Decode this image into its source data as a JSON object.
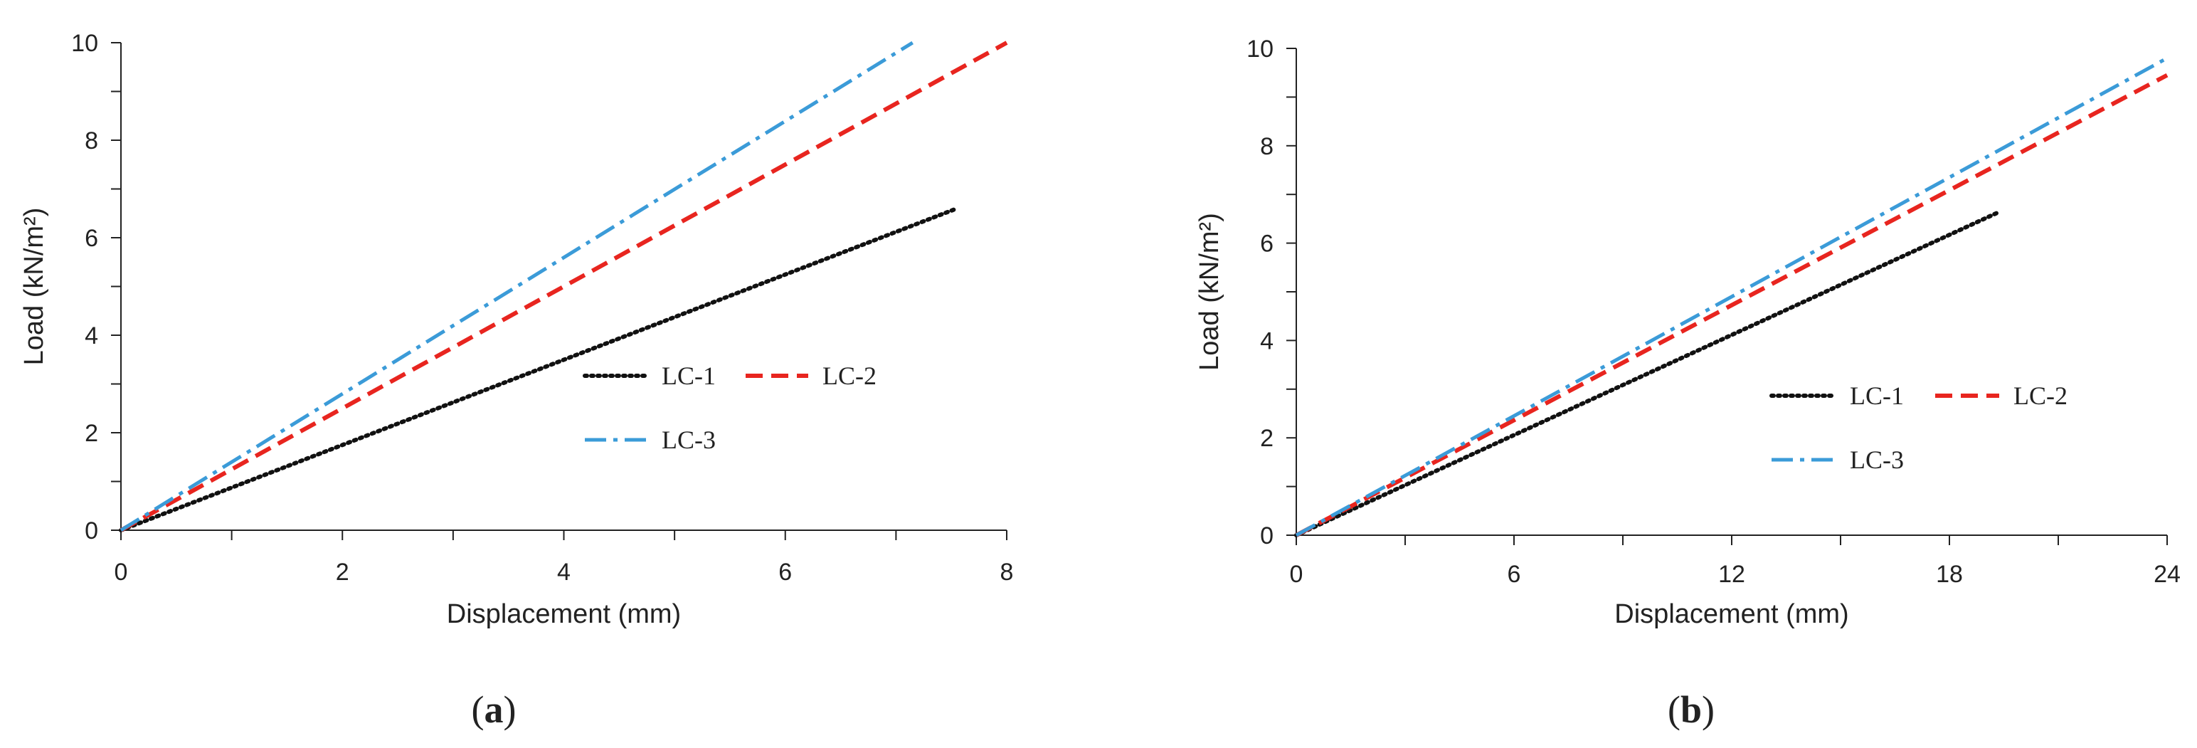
{
  "chart_data": [
    {
      "type": "line",
      "panel_label": "a",
      "caption_open": "(",
      "caption_close": ")",
      "title": "",
      "xlabel": "Displacement (mm)",
      "ylabel": "Load (kN/m²)",
      "xlim": [
        0,
        8
      ],
      "ylim": [
        0,
        10
      ],
      "xticks": [
        0,
        2,
        4,
        6,
        8
      ],
      "yticks": [
        0,
        2,
        4,
        6,
        8,
        10
      ],
      "xminor": 1,
      "yminor": 1,
      "grid": false,
      "legend_position": "center-right",
      "series": [
        {
          "name": "LC-1",
          "color": "#111111",
          "style": "dotted",
          "points": [
            [
              0,
              0
            ],
            [
              7.55,
              6.6
            ]
          ]
        },
        {
          "name": "LC-2",
          "color": "#e8251f",
          "style": "dashed",
          "points": [
            [
              0,
              0
            ],
            [
              8.0,
              10.0
            ]
          ]
        },
        {
          "name": "LC-3",
          "color": "#3b9bd8",
          "style": "dashdot",
          "points": [
            [
              0,
              0
            ],
            [
              7.15,
              10.0
            ]
          ]
        }
      ]
    },
    {
      "type": "line",
      "panel_label": "b",
      "caption_open": "(",
      "caption_close": ")",
      "title": "",
      "xlabel": "Displacement (mm)",
      "ylabel": "Load (kN/m²)",
      "xlim": [
        0,
        24
      ],
      "ylim": [
        0,
        10
      ],
      "xticks": [
        0,
        6,
        12,
        18,
        24
      ],
      "yticks": [
        0,
        2,
        4,
        6,
        8,
        10
      ],
      "xminor": 3,
      "yminor": 1,
      "grid": false,
      "legend_position": "center-right",
      "series": [
        {
          "name": "LC-1",
          "color": "#111111",
          "style": "dotted",
          "points": [
            [
              0,
              0
            ],
            [
              19.4,
              6.65
            ]
          ]
        },
        {
          "name": "LC-2",
          "color": "#e8251f",
          "style": "dashed",
          "points": [
            [
              0,
              0
            ],
            [
              24.0,
              9.45
            ]
          ]
        },
        {
          "name": "LC-3",
          "color": "#3b9bd8",
          "style": "dashdot",
          "points": [
            [
              0,
              0
            ],
            [
              24.0,
              9.8
            ]
          ]
        }
      ]
    }
  ]
}
